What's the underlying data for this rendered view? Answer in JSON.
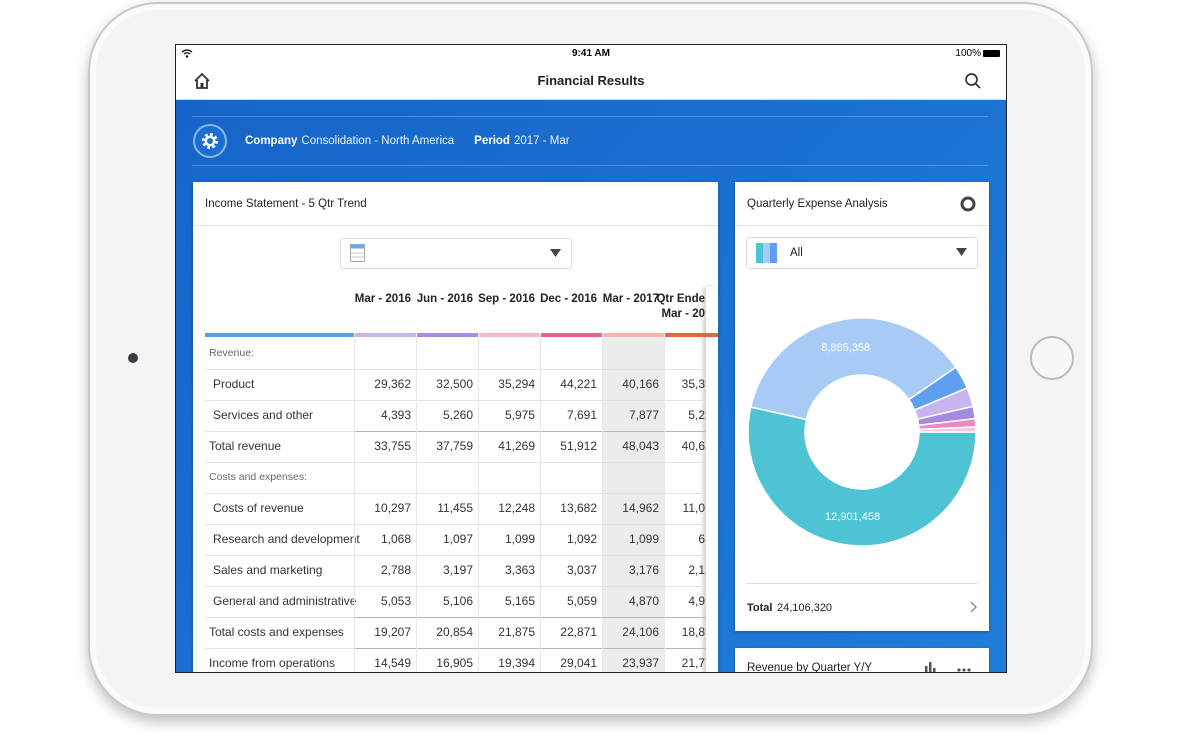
{
  "status_bar": {
    "time": "9:41 AM",
    "battery": "100%"
  },
  "nav": {
    "title": "Financial Results"
  },
  "filters": [
    {
      "label": "Company",
      "value": "Consolidation - North America"
    },
    {
      "label": "Period",
      "value": "2017 - Mar"
    }
  ],
  "income_statement": {
    "title": "Income Statement - 5 Qtr Trend",
    "columns": [
      [
        "Mar - 2016"
      ],
      [
        "Jun - 2016"
      ],
      [
        "Sep - 2016"
      ],
      [
        "Dec - 2016"
      ],
      [
        "Mar - 2017"
      ],
      [
        "Qtr Ende",
        "Mar - 20"
      ]
    ],
    "label_color": "#5b9ee6",
    "column_colors": [
      "#c9b4e8",
      "#a98de0",
      "#f4b6d2",
      "#ee5c92",
      "#f4b5a8",
      "#e8633f"
    ],
    "highlight_column": 4,
    "rows": [
      {
        "label": "Revenue:",
        "type": "section"
      },
      {
        "label": "Product",
        "type": "item",
        "cells": [
          "29,362",
          "32,500",
          "35,294",
          "44,221",
          "40,166",
          "35,3"
        ]
      },
      {
        "label": "Services and other",
        "type": "item",
        "cells": [
          "4,393",
          "5,260",
          "5,975",
          "7,691",
          "7,877",
          "5,2"
        ]
      },
      {
        "label": "Total revenue",
        "type": "total",
        "cells": [
          "33,755",
          "37,759",
          "41,269",
          "51,912",
          "48,043",
          "40,6"
        ]
      },
      {
        "label": "Costs and expenses:",
        "type": "section"
      },
      {
        "label": "Costs of revenue",
        "type": "item",
        "cells": [
          "10,297",
          "11,455",
          "12,248",
          "13,682",
          "14,962",
          "11,0"
        ]
      },
      {
        "label": "Research and development",
        "type": "item",
        "cells": [
          "1,068",
          "1,097",
          "1,099",
          "1,092",
          "1,099",
          "6"
        ]
      },
      {
        "label": "Sales and marketing",
        "type": "item",
        "cells": [
          "2,788",
          "3,197",
          "3,363",
          "3,037",
          "3,176",
          "2,1"
        ]
      },
      {
        "label": "General and administrative",
        "type": "item",
        "cells": [
          "5,053",
          "5,106",
          "5,165",
          "5,059",
          "4,870",
          "4,9"
        ]
      },
      {
        "label": "Total costs and expenses",
        "type": "total",
        "cells": [
          "19,207",
          "20,854",
          "21,875",
          "22,871",
          "24,106",
          "18,8"
        ]
      },
      {
        "label": "Income from operations",
        "type": "total",
        "cells": [
          "14,549",
          "16,905",
          "19,394",
          "29,041",
          "23,937",
          "21,7"
        ]
      }
    ]
  },
  "expense_analysis": {
    "title": "Quarterly Expense Analysis",
    "filter": "All",
    "total_label": "Total",
    "total": "24,106,320"
  },
  "chart_data": {
    "type": "pie",
    "donut": true,
    "values": [
      12901458,
      8885358,
      800000,
      650000,
      420000,
      280000,
      169504
    ],
    "value_labels": [
      "12,901,458",
      "8,885,358",
      null,
      null,
      null,
      null,
      null
    ],
    "colors": [
      "#4ec3d4",
      "#a8cbf5",
      "#5f9ff0",
      "#c8b5f0",
      "#a58be0",
      "#e889c0",
      "#f5c6dc"
    ]
  },
  "revenue_card": {
    "title": "Revenue by Quarter Y/Y"
  }
}
